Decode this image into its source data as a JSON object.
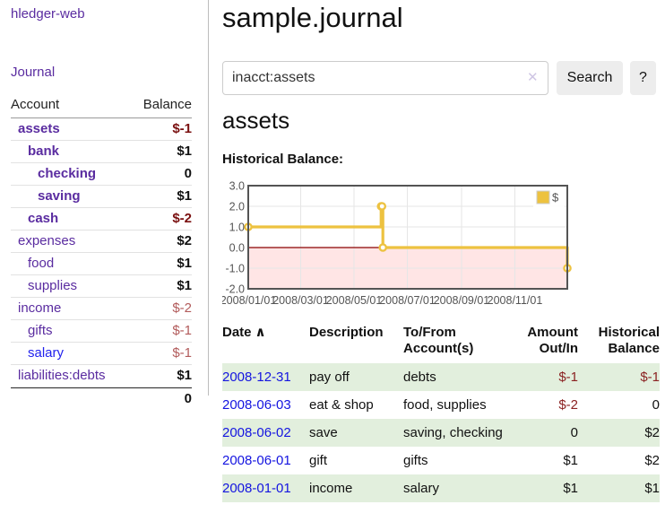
{
  "app": {
    "brand": "hledger-web",
    "nav": {
      "journal": "Journal"
    }
  },
  "sidebar": {
    "header": {
      "account": "Account",
      "balance": "Balance"
    },
    "accounts": [
      {
        "name": "assets",
        "depth": 0,
        "balance": "$-1",
        "bold": true,
        "unvisited": false
      },
      {
        "name": "bank",
        "depth": 1,
        "balance": "$1",
        "bold": true,
        "unvisited": false
      },
      {
        "name": "checking",
        "depth": 2,
        "balance": "0",
        "bold": true,
        "unvisited": false
      },
      {
        "name": "saving",
        "depth": 2,
        "balance": "$1",
        "bold": true,
        "unvisited": false
      },
      {
        "name": "cash",
        "depth": 1,
        "balance": "$-2",
        "bold": true,
        "unvisited": false
      },
      {
        "name": "expenses",
        "depth": 0,
        "balance": "$2",
        "bold": false,
        "unvisited": false
      },
      {
        "name": "food",
        "depth": 1,
        "balance": "$1",
        "bold": false,
        "unvisited": false
      },
      {
        "name": "supplies",
        "depth": 1,
        "balance": "$1",
        "bold": false,
        "unvisited": false
      },
      {
        "name": "income",
        "depth": 0,
        "balance": "$-2",
        "bold": false,
        "unvisited": false
      },
      {
        "name": "gifts",
        "depth": 1,
        "balance": "$-1",
        "bold": false,
        "unvisited": false
      },
      {
        "name": "salary",
        "depth": 1,
        "balance": "$-1",
        "bold": false,
        "unvisited": true
      },
      {
        "name": "liabilities:debts",
        "depth": 0,
        "balance": "$1",
        "bold": false,
        "unvisited": false
      }
    ],
    "total": "0"
  },
  "main": {
    "title": "sample.journal",
    "search": {
      "value": "inacct:assets",
      "clear_icon": "✕",
      "button_label": "Search",
      "help_label": "?"
    },
    "account_heading": "assets",
    "chart_title": "Historical Balance:"
  },
  "chart_data": {
    "type": "line",
    "step": true,
    "title": "Historical Balance",
    "xlim": [
      "2008-01-01",
      "2008-12-31"
    ],
    "ylim": [
      -2,
      3
    ],
    "x_ticks": [
      "2008/01/01",
      "2008/03/01",
      "2008/05/01",
      "2008/07/01",
      "2008/09/01",
      "2008/11/01"
    ],
    "y_ticks": [
      3.0,
      2.0,
      1.0,
      0.0,
      -1.0,
      -2.0
    ],
    "grid": true,
    "legend_position": "top-right",
    "series": [
      {
        "name": "$",
        "color": "#edc240",
        "points": [
          [
            "2008-01-01",
            1
          ],
          [
            "2008-06-01",
            2
          ],
          [
            "2008-06-02",
            2
          ],
          [
            "2008-06-03",
            0
          ],
          [
            "2008-12-31",
            -1
          ]
        ]
      }
    ],
    "zero_line_color": "#8b0000",
    "negative_region_color": "rgba(255,0,0,0.10)",
    "gridline_color": "#e6e6e6",
    "border_color": "#545454"
  },
  "register": {
    "columns": [
      "Date",
      "Description",
      "To/From Account(s)",
      "Amount Out/In",
      "Historical Balance"
    ],
    "sort_icon": "∧",
    "rows": [
      {
        "date": "2008-12-31",
        "description": "pay off",
        "accounts": [
          "debts"
        ],
        "amount": "$-1",
        "balance": "$-1"
      },
      {
        "date": "2008-06-03",
        "description": "eat & shop",
        "accounts": [
          "food",
          "supplies"
        ],
        "amount": "$-2",
        "balance": "0"
      },
      {
        "date": "2008-06-02",
        "description": "save",
        "accounts": [
          "saving",
          "checking"
        ],
        "amount": "0",
        "balance": "$2"
      },
      {
        "date": "2008-06-01",
        "description": "gift",
        "accounts": [
          "gifts"
        ],
        "amount": "$1",
        "balance": "$2"
      },
      {
        "date": "2008-01-01",
        "description": "income",
        "accounts": [
          "salary"
        ],
        "amount": "$1",
        "balance": "$1"
      }
    ]
  },
  "colors": {
    "accent_purple": "#5a2ca0",
    "link_blue": "#1414e0",
    "negative_dark": "#7a1010",
    "negative_soft": "#b25b5b",
    "negative": "#8b2222",
    "row_stripe_green": "#e2efdd",
    "series_gold": "#edc240",
    "zero_line_red": "#8b0000"
  }
}
